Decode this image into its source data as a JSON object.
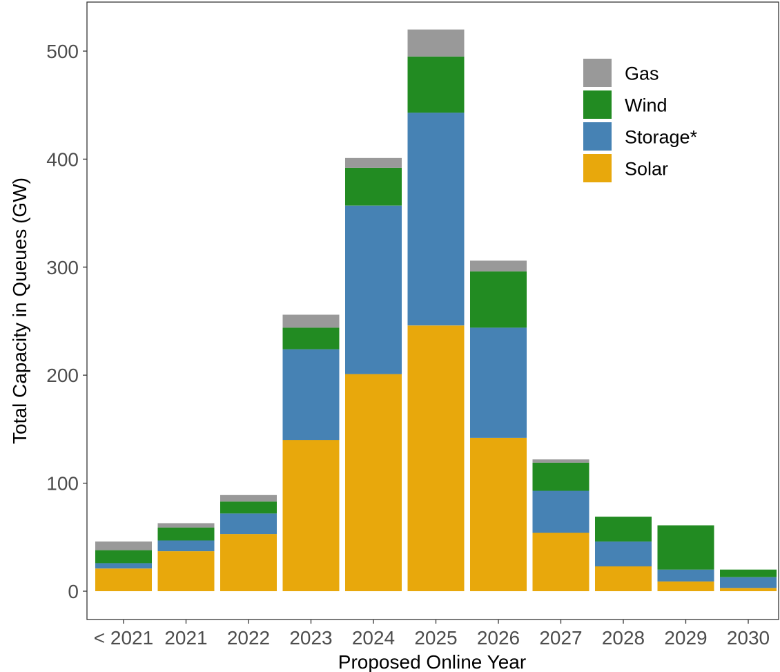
{
  "chart_data": {
    "type": "bar",
    "stacked": true,
    "title": "",
    "xlabel": "Proposed Online Year",
    "ylabel": "Total Capacity in Queues (GW)",
    "ylim": [
      0,
      525
    ],
    "yticks": [
      0,
      100,
      200,
      300,
      400,
      500
    ],
    "grid": false,
    "legend_position": "top-right",
    "categories": [
      "< 2021",
      "2021",
      "2022",
      "2023",
      "2024",
      "2025",
      "2026",
      "2027",
      "2028",
      "2029",
      "2030"
    ],
    "series": [
      {
        "name": "Solar",
        "color": "#E8A80C",
        "values": [
          21,
          37,
          53,
          140,
          201,
          246,
          142,
          54,
          23,
          9,
          3
        ]
      },
      {
        "name": "Storage*",
        "color": "#4682B4",
        "values": [
          5,
          10,
          19,
          84,
          156,
          197,
          102,
          39,
          23,
          11,
          10
        ]
      },
      {
        "name": "Wind",
        "color": "#228B22",
        "values": [
          12,
          12,
          11,
          20,
          35,
          52,
          52,
          26,
          23,
          41,
          7
        ]
      },
      {
        "name": "Gas",
        "color": "#999999",
        "values": [
          8,
          4,
          6,
          12,
          9,
          25,
          10,
          3,
          0,
          0,
          0
        ]
      }
    ],
    "legend_order": [
      "Gas",
      "Wind",
      "Storage*",
      "Solar"
    ]
  }
}
